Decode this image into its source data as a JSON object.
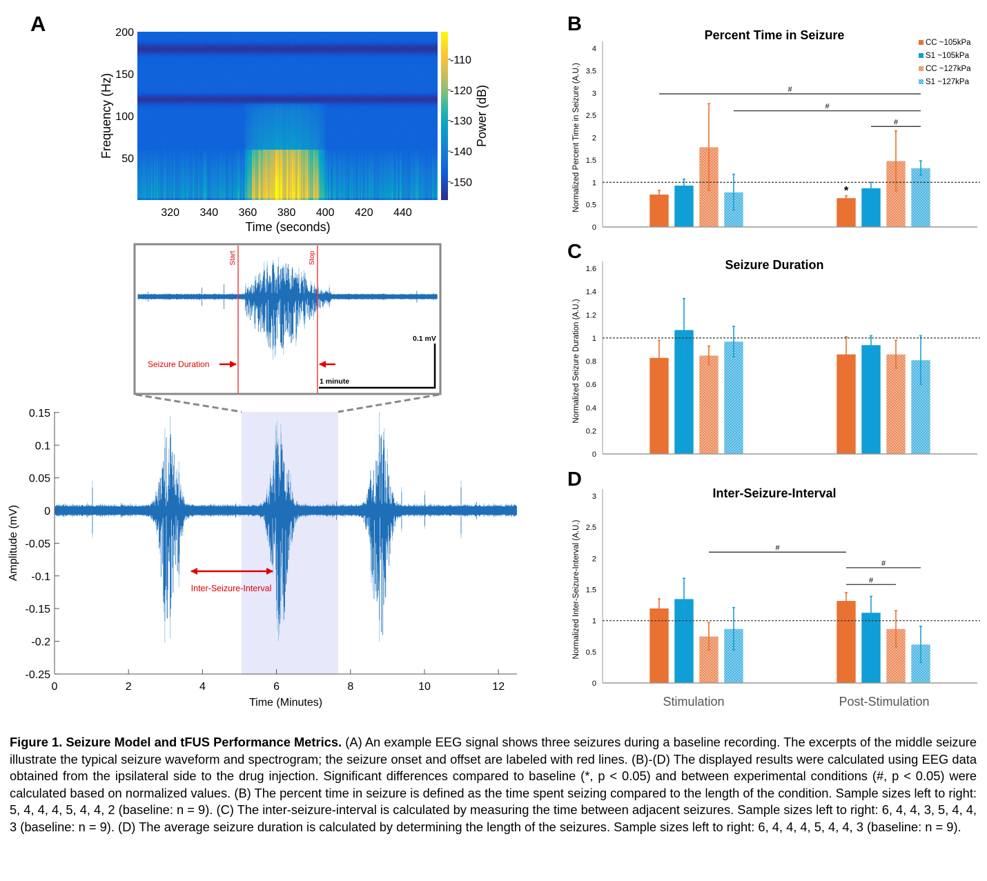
{
  "panel_labels": {
    "a": "A",
    "b": "B",
    "c": "C",
    "d": "D"
  },
  "caption": {
    "bold": "Figure 1. Seizure Model and tFUS Performance Metrics.",
    "text": " (A) An example EEG signal shows three seizures during a baseline recording. The excerpts of the middle seizure illustrate the typical seizure waveform and spectrogram; the seizure onset and offset are labeled with red lines. (B)-(D) The displayed results were calculated using EEG data obtained from the ipsilateral side to the drug injection. Significant differences compared to baseline (*, p < 0.05) and between experimental conditions (#, p < 0.05) were calculated based on normalized values. (B) The percent time in seizure is defined as the time spent seizing compared to the length of the condition. Sample sizes left to right: 5, 4, 4, 4, 5, 4, 4, 2 (baseline: n = 9). (C) The inter-seizure-interval is calculated by measuring the time between adjacent seizures. Sample sizes left to right: 6, 4, 4, 3, 5, 4, 4, 3 (baseline: n = 9). (D) The average seizure duration is calculated by determining the length of the seizures. Sample sizes left to right: 6, 4, 4, 4, 5, 4, 4, 3 (baseline: n = 9)."
  },
  "chart_data": [
    {
      "id": "spectrogram",
      "type": "heatmap",
      "xlabel": "Time (seconds)",
      "ylabel": "Frequency (Hz)",
      "xlim": [
        303,
        458
      ],
      "ylim": [
        0,
        200
      ],
      "xticks": [
        320,
        340,
        360,
        380,
        400,
        420,
        440
      ],
      "yticks": [
        50,
        100,
        150,
        200
      ],
      "colorbar": {
        "label": "Power (dB)",
        "range": [
          -156,
          -101
        ],
        "ticks": [
          -110,
          -120,
          -130,
          -140,
          -150
        ]
      },
      "markers": [
        {
          "label": "Start",
          "x": 356
        },
        {
          "label": "Stop",
          "x": 397
        }
      ],
      "seizure_window": [
        358,
        400
      ]
    },
    {
      "id": "eeg-trace",
      "type": "line",
      "xlabel": "Time (Minutes)",
      "ylabel": "Amplitude (mV)",
      "xlim": [
        0,
        12.5
      ],
      "ylim": [
        -0.25,
        0.15
      ],
      "xticks": [
        0,
        2,
        4,
        6,
        8,
        10,
        12
      ],
      "yticks": [
        "0.15",
        "0.1",
        "0.05",
        "0",
        "-0.05",
        "-0.1",
        "-0.15",
        "-0.2",
        "-0.25"
      ],
      "seizure_centers": [
        3.1,
        6.1,
        8.8
      ],
      "highlight": [
        5.0,
        7.6
      ],
      "annotation": "Inter-Seizure-Interval",
      "annotation_range": [
        3.6,
        5.9
      ]
    },
    {
      "id": "inset",
      "type": "line",
      "markers": [
        "Start",
        "Stop"
      ],
      "annotation": "Seizure Duration",
      "scale_v": "0.1 mV",
      "scale_h": "1 minute"
    },
    {
      "id": "percent-time",
      "type": "bar",
      "title": "Percent Time in Seizure",
      "ylabel": "Normalized Percent Time in Seizure (A.U.)",
      "ylim": [
        0,
        4
      ],
      "yticks": [
        "0",
        "0.5",
        "1",
        "1.5",
        "2",
        "2.5",
        "3",
        "3.5",
        "4"
      ],
      "categories": [
        "Stimulation",
        "Post-Stimulation"
      ],
      "baseline": 1,
      "series": [
        {
          "name": "CC ~105kPa",
          "color": "#e97132",
          "hatched": false,
          "values": [
            0.73,
            0.65
          ],
          "errors": [
            0.09,
            0.05
          ]
        },
        {
          "name": "S1 ~105kPa",
          "color": "#0f9ed5",
          "hatched": false,
          "values": [
            0.93,
            0.87
          ],
          "errors": [
            0.14,
            0.13
          ]
        },
        {
          "name": "CC ~127kPa",
          "color": "#e97132",
          "hatched": true,
          "values": [
            1.79,
            1.48
          ],
          "errors": [
            0.97,
            0.67
          ]
        },
        {
          "name": "S1 ~127kPa",
          "color": "#0f9ed5",
          "hatched": true,
          "values": [
            0.78,
            1.32
          ],
          "errors": [
            0.4,
            0.16
          ]
        }
      ],
      "significance": [
        {
          "label": "#",
          "from": 0,
          "to": 7,
          "y": 2.98
        },
        {
          "label": "#",
          "from": 3,
          "to": 7,
          "y": 2.6
        },
        {
          "label": "#",
          "from": 5,
          "to": 7,
          "y": 2.25
        }
      ],
      "stars": [
        {
          "label": "*",
          "bar": 4
        }
      ],
      "legend": "top-right"
    },
    {
      "id": "seizure-duration",
      "type": "bar",
      "title": "Seizure Duration",
      "ylabel": "Normalized Seizure Duration (A.U.)",
      "ylim": [
        0,
        1.6
      ],
      "yticks": [
        "0",
        "0.2",
        "0.4",
        "0.6",
        "0.8",
        "1",
        "1.2",
        "1.4",
        "1.6"
      ],
      "categories": [
        "Stimulation",
        "Post-Stimulation"
      ],
      "baseline": 1,
      "series": [
        {
          "name": "CC ~105kPa",
          "color": "#e97132",
          "hatched": false,
          "values": [
            0.83,
            0.86
          ],
          "errors": [
            0.15,
            0.15
          ]
        },
        {
          "name": "S1 ~105kPa",
          "color": "#0f9ed5",
          "hatched": false,
          "values": [
            1.07,
            0.94
          ],
          "errors": [
            0.27,
            0.08
          ]
        },
        {
          "name": "CC ~127kPa",
          "color": "#e97132",
          "hatched": true,
          "values": [
            0.85,
            0.86
          ],
          "errors": [
            0.08,
            0.12
          ]
        },
        {
          "name": "S1 ~127kPa",
          "color": "#0f9ed5",
          "hatched": true,
          "values": [
            0.97,
            0.81
          ],
          "errors": [
            0.13,
            0.21
          ]
        }
      ],
      "significance": [],
      "stars": []
    },
    {
      "id": "inter-seizure-interval",
      "type": "bar",
      "title": "Inter-Seizure-Interval",
      "ylabel": "Normalized Inter-Seizure-Interval (A.U.)",
      "ylim": [
        0,
        3
      ],
      "yticks": [
        "0",
        "0.5",
        "1",
        "1.5",
        "2",
        "2.5",
        "3"
      ],
      "categories": [
        "Stimulation",
        "Post-Stimulation"
      ],
      "baseline": 1,
      "series": [
        {
          "name": "CC ~105kPa",
          "color": "#e97132",
          "hatched": false,
          "values": [
            1.2,
            1.32
          ],
          "errors": [
            0.15,
            0.13
          ]
        },
        {
          "name": "S1 ~105kPa",
          "color": "#0f9ed5",
          "hatched": false,
          "values": [
            1.35,
            1.13
          ],
          "errors": [
            0.33,
            0.26
          ]
        },
        {
          "name": "CC ~127kPa",
          "color": "#e97132",
          "hatched": true,
          "values": [
            0.75,
            0.87
          ],
          "errors": [
            0.22,
            0.29
          ]
        },
        {
          "name": "S1 ~127kPa",
          "color": "#0f9ed5",
          "hatched": true,
          "values": [
            0.87,
            0.62
          ],
          "errors": [
            0.34,
            0.29
          ]
        }
      ],
      "significance": [
        {
          "label": "#",
          "from": 2,
          "to": 4,
          "y": 2.1
        },
        {
          "label": "#",
          "from": 4,
          "to": 7,
          "y": 1.85
        },
        {
          "label": "#",
          "from": 4,
          "to": 6,
          "y": 1.58
        }
      ],
      "stars": [],
      "show_categories": true
    }
  ]
}
